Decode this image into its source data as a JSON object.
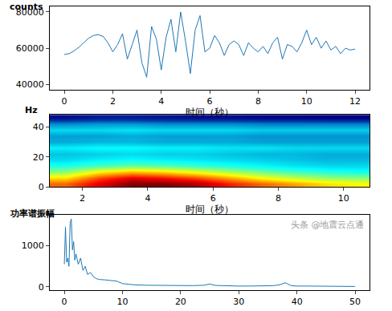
{
  "chart_data": [
    {
      "type": "line",
      "y_label": "counts",
      "x_label": "时间（秒）",
      "color": "#1f77b4",
      "x": [
        0,
        0.2,
        0.4,
        0.6,
        0.8,
        1.0,
        1.2,
        1.4,
        1.6,
        1.8,
        2.0,
        2.2,
        2.4,
        2.6,
        2.8,
        3.0,
        3.2,
        3.4,
        3.6,
        3.8,
        4.0,
        4.2,
        4.4,
        4.6,
        4.8,
        5.0,
        5.2,
        5.4,
        5.6,
        5.8,
        6.0,
        6.2,
        6.4,
        6.6,
        6.8,
        7.0,
        7.2,
        7.4,
        7.6,
        7.8,
        8.0,
        8.2,
        8.4,
        8.6,
        8.8,
        9.0,
        9.2,
        9.4,
        9.6,
        9.8,
        10.0,
        10.2,
        10.4,
        10.6,
        10.8,
        11.0,
        11.2,
        11.4,
        11.6,
        11.8,
        12.0
      ],
      "values": [
        56500,
        57000,
        58500,
        60500,
        63000,
        65500,
        67000,
        67500,
        66500,
        63000,
        58000,
        62000,
        68000,
        54000,
        62000,
        70000,
        52000,
        44000,
        72000,
        65000,
        48000,
        66000,
        76000,
        58000,
        80000,
        64000,
        46000,
        70000,
        78000,
        58000,
        60000,
        67000,
        63000,
        56000,
        62000,
        64000,
        62000,
        56000,
        63000,
        60000,
        58000,
        61000,
        57000,
        63000,
        66000,
        54000,
        62000,
        61000,
        58000,
        63000,
        70000,
        62000,
        66000,
        60000,
        64000,
        59000,
        61000,
        57000,
        60000,
        59000,
        59500
      ],
      "xlim": [
        -0.6,
        12.6
      ],
      "xticks": [
        0,
        2,
        4,
        6,
        8,
        10,
        12
      ],
      "ylim": [
        37000,
        83000
      ],
      "yticks": [
        40000,
        60000,
        80000
      ],
      "grid": false
    },
    {
      "type": "heatmap",
      "y_label": "Hz",
      "x_label": "时间（秒）",
      "x": [
        1.5,
        2.5,
        3.5,
        4.5,
        5.5,
        6.5,
        7.5,
        8.5,
        9.5,
        10.5
      ],
      "y": [
        2,
        6,
        10,
        14,
        18,
        22,
        26,
        30,
        34,
        38,
        42,
        46
      ],
      "cells": [
        [
          80,
          88,
          95,
          95,
          92,
          85,
          80,
          76,
          72,
          70
        ],
        [
          72,
          82,
          88,
          86,
          82,
          76,
          70,
          66,
          63,
          62
        ],
        [
          62,
          70,
          74,
          72,
          68,
          64,
          60,
          57,
          55,
          54
        ],
        [
          55,
          58,
          60,
          59,
          57,
          55,
          53,
          51,
          50,
          50
        ],
        [
          50,
          52,
          53,
          52,
          51,
          50,
          49,
          48,
          47,
          47
        ],
        [
          48,
          49,
          50,
          49,
          49,
          48,
          47,
          47,
          46,
          46
        ],
        [
          52,
          53,
          53,
          52,
          52,
          51,
          51,
          50,
          50,
          50
        ],
        [
          46,
          47,
          47,
          46,
          46,
          46,
          45,
          45,
          45,
          45
        ],
        [
          45,
          45,
          46,
          45,
          45,
          45,
          44,
          44,
          44,
          44
        ],
        [
          50,
          50,
          51,
          50,
          50,
          50,
          49,
          49,
          49,
          49
        ],
        [
          43,
          44,
          44,
          43,
          43,
          43,
          42,
          42,
          42,
          42
        ],
        [
          30,
          32,
          32,
          31,
          30,
          30,
          29,
          29,
          28,
          28
        ]
      ],
      "xlim": [
        1,
        10.8
      ],
      "xticks": [
        2,
        4,
        6,
        8,
        10
      ],
      "ylim": [
        0,
        48
      ],
      "yticks": [
        0,
        20,
        40
      ]
    },
    {
      "type": "line",
      "y_label": "功率谱振幅",
      "color": "#1f77b4",
      "annotations": [
        "头条 @地震云点通"
      ],
      "x": [
        0,
        0.2,
        0.4,
        0.6,
        0.8,
        1.0,
        1.2,
        1.4,
        1.6,
        1.8,
        2.0,
        2.4,
        2.8,
        3.2,
        3.6,
        4.0,
        4.5,
        5,
        5.5,
        6,
        7,
        8,
        9,
        10,
        11,
        12,
        14,
        16,
        18,
        20,
        22,
        24,
        25,
        26,
        28,
        30,
        32,
        34,
        36,
        37,
        38,
        39,
        40,
        42,
        44,
        46,
        48,
        50
      ],
      "values": [
        550,
        1450,
        600,
        700,
        500,
        1550,
        1650,
        900,
        1100,
        650,
        800,
        550,
        700,
        400,
        500,
        300,
        350,
        250,
        200,
        180,
        170,
        160,
        140,
        80,
        60,
        50,
        40,
        35,
        30,
        30,
        30,
        40,
        70,
        35,
        25,
        20,
        20,
        20,
        30,
        50,
        100,
        30,
        20,
        20,
        15,
        15,
        10,
        10
      ],
      "xlim": [
        -2.5,
        52.5
      ],
      "xticks": [
        0,
        10,
        20,
        30,
        40,
        50
      ],
      "ylim": [
        -80,
        1750
      ],
      "yticks": [
        0,
        1000
      ],
      "grid": false
    }
  ]
}
